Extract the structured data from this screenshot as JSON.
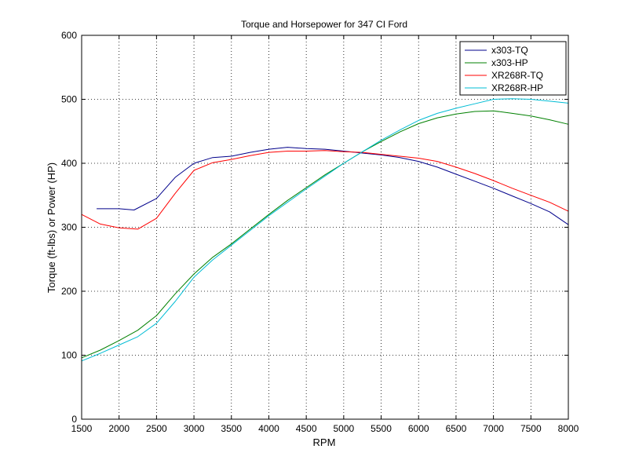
{
  "chart_data": {
    "type": "line",
    "title": "Torque and Horsepower for 347 CI Ford",
    "xlabel": "RPM",
    "ylabel": "Torque (ft-lbs) or Power (HP)",
    "xlim": [
      1500,
      8000
    ],
    "ylim": [
      0,
      600
    ],
    "xticks": [
      1500,
      2000,
      2500,
      3000,
      3500,
      4000,
      4500,
      5000,
      5500,
      6000,
      6500,
      7000,
      7500,
      8000
    ],
    "yticks": [
      0,
      100,
      200,
      300,
      400,
      500,
      600
    ],
    "grid": true,
    "legend_position": "top-right",
    "series": [
      {
        "name": "x303-TQ",
        "color": "#00008b",
        "x": [
          1700,
          2000,
          2200,
          2500,
          2750,
          3000,
          3250,
          3500,
          3750,
          4000,
          4250,
          4500,
          4750,
          5000,
          5250,
          5500,
          5750,
          6000,
          6250,
          6500,
          6750,
          7000,
          7250,
          7500,
          7750,
          8000
        ],
        "y": [
          329,
          329,
          327,
          345,
          378,
          400,
          409,
          411,
          417,
          422,
          425,
          423,
          422,
          419,
          416,
          413,
          409,
          403,
          394,
          383,
          372,
          361,
          349,
          337,
          324,
          304
        ]
      },
      {
        "name": "x303-HP",
        "color": "#008000",
        "x": [
          1500,
          1750,
          2000,
          2250,
          2500,
          2750,
          3000,
          3250,
          3500,
          3750,
          4000,
          4250,
          4500,
          4750,
          5000,
          5250,
          5500,
          5750,
          6000,
          6250,
          6500,
          6750,
          7000,
          7250,
          7500,
          7750,
          8000
        ],
        "y": [
          96,
          108,
          123,
          139,
          162,
          196,
          227,
          253,
          274,
          297,
          320,
          342,
          362,
          382,
          400,
          418,
          434,
          449,
          462,
          471,
          477,
          481,
          482,
          478,
          474,
          468,
          461
        ]
      },
      {
        "name": "XR268R-TQ",
        "color": "#ff0000",
        "x": [
          1500,
          1750,
          2000,
          2250,
          2500,
          2750,
          3000,
          3250,
          3500,
          3750,
          4000,
          4250,
          4500,
          4750,
          5000,
          5250,
          5500,
          5750,
          6000,
          6250,
          6500,
          6750,
          7000,
          7250,
          7500,
          7750,
          8000
        ],
        "y": [
          320,
          305,
          299,
          297,
          314,
          353,
          389,
          401,
          406,
          412,
          417,
          419,
          419,
          420,
          418,
          417,
          414,
          411,
          408,
          403,
          394,
          384,
          373,
          361,
          350,
          339,
          325
        ]
      },
      {
        "name": "XR268R-HP",
        "color": "#00bcd4",
        "x": [
          1500,
          1750,
          2000,
          2250,
          2500,
          2750,
          3000,
          3250,
          3500,
          3750,
          4000,
          4250,
          4500,
          4750,
          5000,
          5250,
          5500,
          5750,
          6000,
          6250,
          6500,
          6750,
          7000,
          7250,
          7500,
          7750,
          8000
        ],
        "y": [
          91,
          103,
          116,
          129,
          150,
          184,
          222,
          249,
          272,
          295,
          318,
          339,
          360,
          380,
          400,
          418,
          436,
          452,
          467,
          478,
          486,
          493,
          500,
          501,
          500,
          497,
          494
        ]
      }
    ]
  }
}
